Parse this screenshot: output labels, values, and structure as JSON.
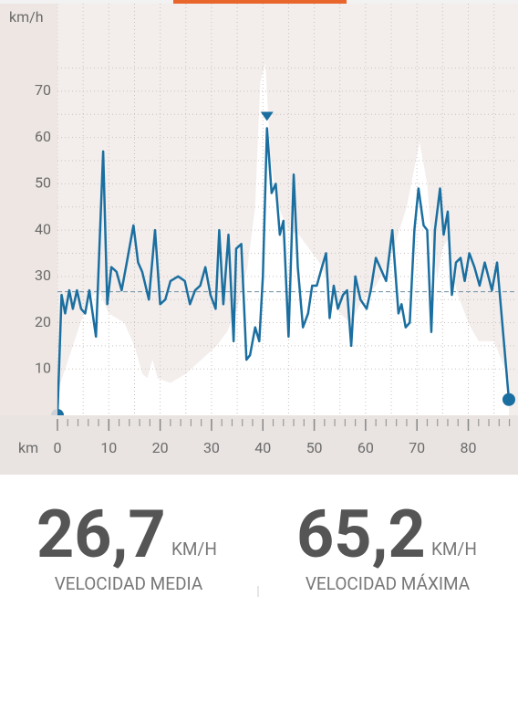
{
  "chart_data": {
    "type": "line",
    "y_label": "km/h",
    "x_label": "km",
    "xlim": [
      0,
      89.5
    ],
    "ylim": [
      0,
      89.7
    ],
    "xticks": [
      0,
      10,
      20,
      30,
      40,
      50,
      60,
      70,
      80
    ],
    "yticks": [
      10,
      20,
      30,
      40,
      50,
      60,
      70
    ],
    "grid": true,
    "average_line": 26.7,
    "series": [
      {
        "color": "#1b6fa0",
        "kind": "speed",
        "x": [
          0,
          0.8,
          1.5,
          2.3,
          3,
          3.8,
          4.6,
          5.4,
          6.2,
          7.5,
          8.9,
          9.7,
          10.5,
          11.5,
          12.5,
          13.5,
          14.8,
          15.7,
          16.5,
          17.8,
          19,
          20,
          21,
          22,
          23.5,
          24.8,
          25.8,
          26.8,
          27.8,
          28.8,
          29.8,
          30.8,
          31.5,
          32.3,
          33.3,
          34.3,
          34.8,
          35.8,
          36.8,
          37.5,
          38.5,
          39.3,
          40,
          40.8,
          41.7,
          42.5,
          43.3,
          44,
          45,
          46,
          46.8,
          47.8,
          48.8,
          49.6,
          50.5,
          51.5,
          52.3,
          53,
          53.8,
          54.6,
          55.6,
          56.4,
          57.2,
          58,
          59,
          60.2,
          61,
          62,
          63.2,
          64,
          65.2,
          66.4,
          67,
          67.8,
          68.6,
          69.5,
          70.3,
          71.3,
          72,
          72.8,
          73.5,
          74.5,
          75.2,
          76,
          76.8,
          77.6,
          78.5,
          79.3,
          80.2,
          81.2,
          82.2,
          83.2,
          84.6,
          85.6,
          87.9
        ],
        "values": [
          0,
          26,
          22,
          27,
          23,
          27,
          23,
          22,
          27,
          17,
          57,
          24,
          32,
          31,
          27,
          33,
          41,
          33,
          31,
          25,
          40,
          24,
          25,
          29,
          30,
          29,
          24,
          27,
          28,
          32,
          26,
          23,
          40,
          24,
          39,
          16,
          36,
          37,
          12,
          13,
          19,
          16,
          30,
          62,
          48,
          50,
          39,
          42,
          17,
          52,
          32,
          19,
          22,
          28,
          28,
          32,
          35,
          21,
          28,
          23,
          26,
          27,
          15,
          30,
          25,
          23,
          27,
          34,
          31,
          29,
          40,
          22,
          24,
          19,
          20,
          40,
          49,
          41,
          40,
          18,
          40,
          49,
          39,
          44,
          26,
          33,
          34,
          29,
          35,
          32,
          28,
          33,
          27,
          33,
          3.4
        ]
      },
      {
        "color": "#ffffff",
        "kind": "elevation",
        "x": [
          0,
          3,
          6,
          8,
          10,
          13,
          15,
          16.5,
          17.5,
          18.5,
          19.5,
          22,
          25,
          27,
          29,
          31,
          33,
          35,
          37,
          38.5,
          39.5,
          40.5,
          41.5,
          43,
          45,
          47,
          49,
          51,
          53,
          55,
          57,
          59,
          62,
          64,
          66,
          68,
          70.5,
          72,
          73,
          74,
          75,
          76,
          77,
          78,
          80,
          82,
          85,
          87.9
        ],
        "values": [
          5,
          15,
          25,
          27,
          22,
          20,
          15,
          9,
          8,
          12,
          8,
          7,
          9,
          11,
          13,
          15,
          18,
          23,
          32,
          45,
          72,
          76,
          55,
          45,
          40,
          39,
          36,
          33,
          28,
          22,
          20,
          24,
          28,
          32,
          38,
          45,
          59,
          50,
          35,
          30,
          36,
          38,
          30,
          26,
          20,
          16,
          16,
          8
        ]
      }
    ]
  },
  "stats": [
    {
      "value": "26,7",
      "unit": "KM/H",
      "label": "VELOCIDAD MEDIA"
    },
    {
      "value": "65,2",
      "unit": "KM/H",
      "label": "VELOCIDAD MÁXIMA"
    }
  ]
}
